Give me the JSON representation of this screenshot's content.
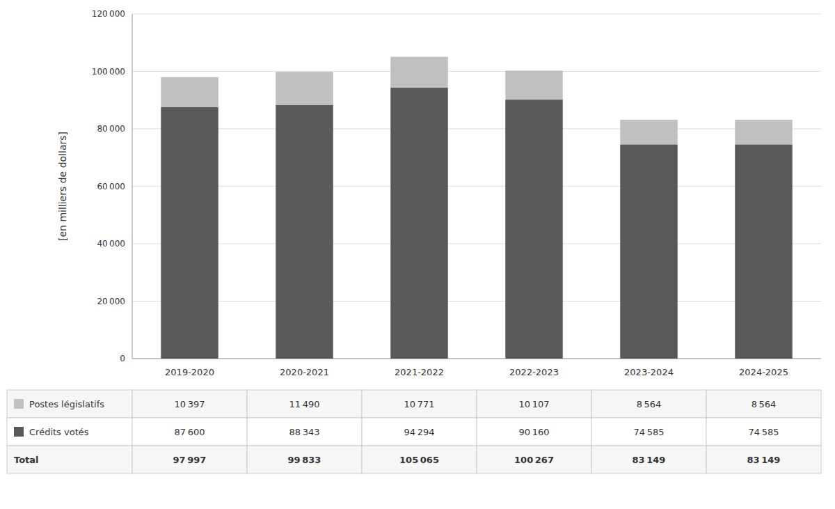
{
  "chart_data": {
    "type": "bar",
    "stacked": true,
    "grid": true,
    "ylabel": "[en milliers de dollars]",
    "categories": [
      "2019-2020",
      "2020-2021",
      "2021-2022",
      "2022-2023",
      "2023-2024",
      "2024-2025"
    ],
    "series": [
      {
        "name": "Crédits votés",
        "color": "#595959",
        "values": [
          87600,
          88343,
          94294,
          90160,
          74585,
          74585
        ],
        "value_labels": [
          "87 600",
          "88 343",
          "94 294",
          "90 160",
          "74 585",
          "74 585"
        ]
      },
      {
        "name": "Postes législatifs",
        "color": "#c0c0c0",
        "values": [
          10397,
          11490,
          10771,
          10107,
          8564,
          8564
        ],
        "value_labels": [
          "10 397",
          "11 490",
          "10 771",
          "10 107",
          "8 564",
          "8 564"
        ]
      }
    ],
    "totals": {
      "name": "Total",
      "values": [
        97997,
        99833,
        105065,
        100267,
        83149,
        83149
      ],
      "value_labels": [
        "97 997",
        "99 833",
        "105 065",
        "100 267",
        "83 149",
        "83 149"
      ]
    },
    "ylim": [
      0,
      120000
    ],
    "yticks": [
      0,
      {
        "value": 20000,
        "label": "20 000"
      },
      {
        "value": 40000,
        "label": "40 000"
      },
      {
        "value": 60000,
        "label": "60 000"
      },
      {
        "value": 80000,
        "label": "80 000"
      },
      {
        "value": 100000,
        "label": "100 000"
      },
      {
        "value": 120000,
        "label": "120 000"
      }
    ]
  }
}
